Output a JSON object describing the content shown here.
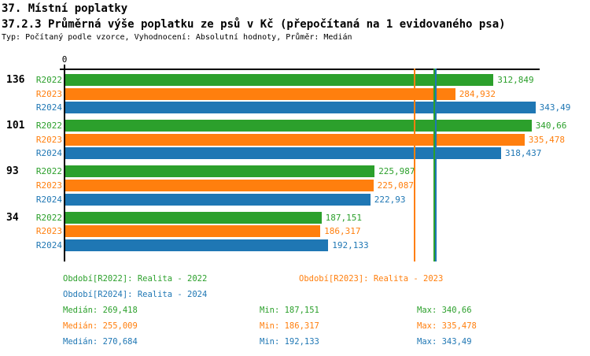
{
  "header": {
    "title1": "37. Místní poplatky",
    "title2": "37.2.3 Průměrná výše poplatku ze psů v Kč (přepočítaná na 1 evidovaného psa)",
    "subtitle": "Typ: Počítaný podle vzorce, Vyhodnocení: Absolutní hodnoty, Průměr: Medián"
  },
  "chart_data": {
    "type": "bar",
    "orientation": "horizontal",
    "origin_label": "0",
    "xlim": [
      0,
      346.6
    ],
    "grid": false,
    "series": [
      "R2022",
      "R2023",
      "R2024"
    ],
    "series_colors": {
      "R2022": "#2ca02c",
      "R2023": "#ff7f0e",
      "R2024": "#1f77b4"
    },
    "groups": [
      {
        "label": "136",
        "bars": [
          {
            "series": "R2022",
            "value": 312.849,
            "label": "312,849"
          },
          {
            "series": "R2023",
            "value": 284.932,
            "label": "284,932"
          },
          {
            "series": "R2024",
            "value": 343.49,
            "label": "343,49"
          }
        ]
      },
      {
        "label": "101",
        "bars": [
          {
            "series": "R2022",
            "value": 340.66,
            "label": "340,66"
          },
          {
            "series": "R2023",
            "value": 335.478,
            "label": "335,478"
          },
          {
            "series": "R2024",
            "value": 318.437,
            "label": "318,437"
          }
        ]
      },
      {
        "label": "93",
        "bars": [
          {
            "series": "R2022",
            "value": 225.987,
            "label": "225,987"
          },
          {
            "series": "R2023",
            "value": 225.087,
            "label": "225,087"
          },
          {
            "series": "R2024",
            "value": 222.93,
            "label": "222,93"
          }
        ]
      },
      {
        "label": "34",
        "bars": [
          {
            "series": "R2022",
            "value": 187.151,
            "label": "187,151"
          },
          {
            "series": "R2023",
            "value": 186.317,
            "label": "186,317"
          },
          {
            "series": "R2024",
            "value": 192.133,
            "label": "192,133"
          }
        ]
      }
    ],
    "median_lines": [
      {
        "series": "R2023",
        "value": 255.009,
        "color": "#ff7f0e"
      },
      {
        "series": "R2022",
        "value": 269.418,
        "color": "#2ca02c"
      },
      {
        "series": "R2024",
        "value": 270.684,
        "color": "#1f77b4"
      }
    ]
  },
  "legend": [
    {
      "label": "Období[R2022]: Realita - 2022",
      "color": "#2ca02c",
      "row": 0,
      "col": 0
    },
    {
      "label": "Období[R2023]: Realita - 2023",
      "color": "#ff7f0e",
      "row": 0,
      "col": 1
    },
    {
      "label": "Období[R2024]: Realita - 2024",
      "color": "#1f77b4",
      "row": 1,
      "col": 0
    }
  ],
  "stats": [
    {
      "series": "R2022",
      "color": "#2ca02c",
      "median": "Medián: 269,418",
      "min": "Min: 187,151",
      "max": "Max: 340,66"
    },
    {
      "series": "R2023",
      "color": "#ff7f0e",
      "median": "Medián: 255,009",
      "min": "Min: 186,317",
      "max": "Max: 335,478"
    },
    {
      "series": "R2024",
      "color": "#1f77b4",
      "median": "Medián: 270,684",
      "min": "Min: 192,133",
      "max": "Max: 343,49"
    }
  ]
}
